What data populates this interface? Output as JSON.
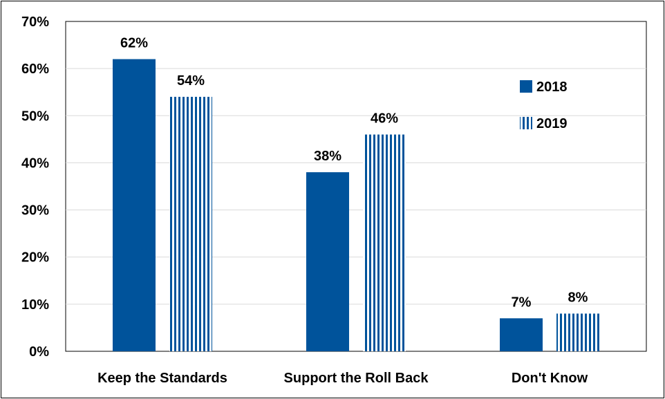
{
  "chart_data": {
    "type": "bar",
    "title": "",
    "xlabel": "",
    "ylabel": "",
    "categories": [
      "Keep the Standards",
      "Support the Roll Back",
      "Don't Know"
    ],
    "series": [
      {
        "name": "2018",
        "values": [
          62,
          38,
          7
        ],
        "data_labels": [
          "62%",
          "38%",
          "7%"
        ],
        "pattern": "solid",
        "color": "#00539b"
      },
      {
        "name": "2019",
        "values": [
          54,
          46,
          8
        ],
        "data_labels": [
          "54%",
          "46%",
          "8%"
        ],
        "pattern": "vertical-stripes",
        "color": "#00539b"
      }
    ],
    "ylim": [
      0,
      70
    ],
    "yticks": [
      "0%",
      "10%",
      "20%",
      "30%",
      "40%",
      "50%",
      "60%",
      "70%"
    ],
    "grid": true,
    "legend_position": "right"
  }
}
